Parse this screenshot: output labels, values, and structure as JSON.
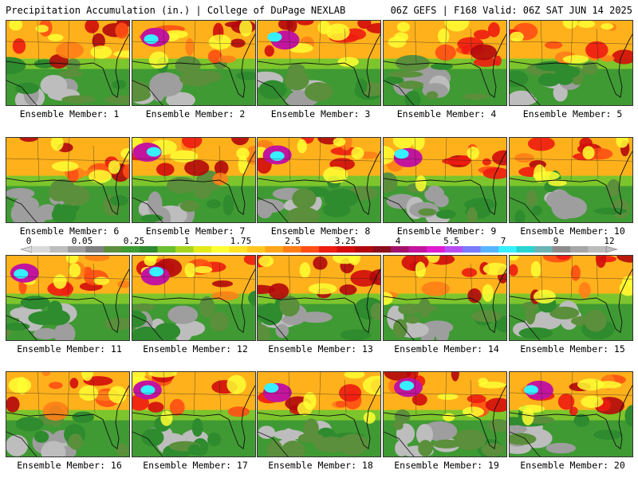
{
  "header": {
    "left_title": "Precipitation Accumulation (in.) | College of DuPage NEXLAB",
    "right_title": "06Z GEFS | F168 Valid: 06Z SAT JUN 14 2025"
  },
  "colorbar": {
    "labels": [
      "0",
      "0.05",
      "0.25",
      "1",
      "1.75",
      "2.5",
      "3.25",
      "4",
      "5.5",
      "7",
      "9",
      "12"
    ],
    "colors": [
      "#d9d9d9",
      "#bdbdbd",
      "#9e9e9e",
      "#7f7f7f",
      "#5b8f3b",
      "#3e9b35",
      "#2e8b2e",
      "#6abf2f",
      "#a6d41f",
      "#e2ea1a",
      "#ffff33",
      "#ffe326",
      "#ffc71e",
      "#ffa51a",
      "#ff7f17",
      "#ff4f14",
      "#ee1c11",
      "#d20c0c",
      "#b2080c",
      "#8c0d1b",
      "#a3126a",
      "#c3149e",
      "#e01ad0",
      "#b84cf0",
      "#7a7aff",
      "#58b4ff",
      "#36f0ff",
      "#28d4d0",
      "#6ab4b4",
      "#8c8c8c",
      "#a6a6a6",
      "#bcbcbc"
    ]
  },
  "panels": [
    {
      "label": "Ensemble Member: 1"
    },
    {
      "label": "Ensemble Member: 2"
    },
    {
      "label": "Ensemble Member: 3"
    },
    {
      "label": "Ensemble Member: 4"
    },
    {
      "label": "Ensemble Member: 5"
    },
    {
      "label": "Ensemble Member: 6"
    },
    {
      "label": "Ensemble Member: 7"
    },
    {
      "label": "Ensemble Member: 8"
    },
    {
      "label": "Ensemble Member: 9"
    },
    {
      "label": "Ensemble Member: 10"
    },
    {
      "label": "Ensemble Member: 11"
    },
    {
      "label": "Ensemble Member: 12"
    },
    {
      "label": "Ensemble Member: 13"
    },
    {
      "label": "Ensemble Member: 14"
    },
    {
      "label": "Ensemble Member: 15"
    },
    {
      "label": "Ensemble Member: 16"
    },
    {
      "label": "Ensemble Member: 17"
    },
    {
      "label": "Ensemble Member: 18"
    },
    {
      "label": "Ensemble Member: 19"
    },
    {
      "label": "Ensemble Member: 20"
    }
  ]
}
